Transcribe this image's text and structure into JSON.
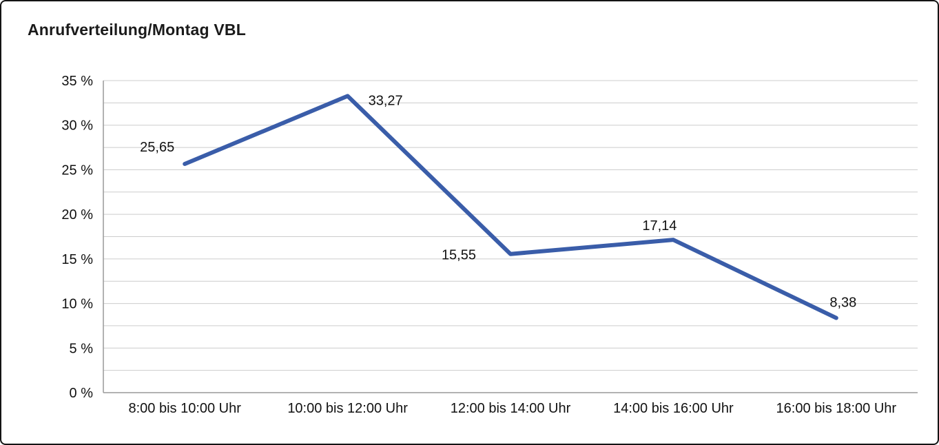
{
  "page": {
    "background": "#ffffff",
    "frame_border_color": "#141414"
  },
  "chart_data": {
    "type": "line",
    "title": "Anrufverteilung/Montag VBL",
    "categories": [
      "8:00 bis 10:00 Uhr",
      "10:00 bis 12:00 Uhr",
      "12:00 bis 14:00 Uhr",
      "14:00 bis 16:00 Uhr",
      "16:00 bis 18:00 Uhr"
    ],
    "values": [
      25.65,
      33.27,
      15.55,
      17.14,
      8.38
    ],
    "data_labels": [
      "25,65",
      "33,27",
      "15,55",
      "17,14",
      "8,38"
    ],
    "data_label_positions": [
      "above-left",
      "right",
      "left",
      "above",
      "above-right"
    ],
    "xlabel": "",
    "ylabel": "",
    "ylim": [
      0,
      35
    ],
    "ytick_step": 5,
    "ytick_minor_step": 2.5,
    "ytick_labels": [
      "0 %",
      "5 %",
      "10 %",
      "15 %",
      "20 %",
      "25 %",
      "30 %",
      "35 %"
    ],
    "grid": true,
    "legend_position": "none",
    "line_color": "#3a5da9",
    "line_width": 6,
    "gridline_color": "#cccccc",
    "axis_color": "#999999",
    "text_color": "#111111"
  }
}
